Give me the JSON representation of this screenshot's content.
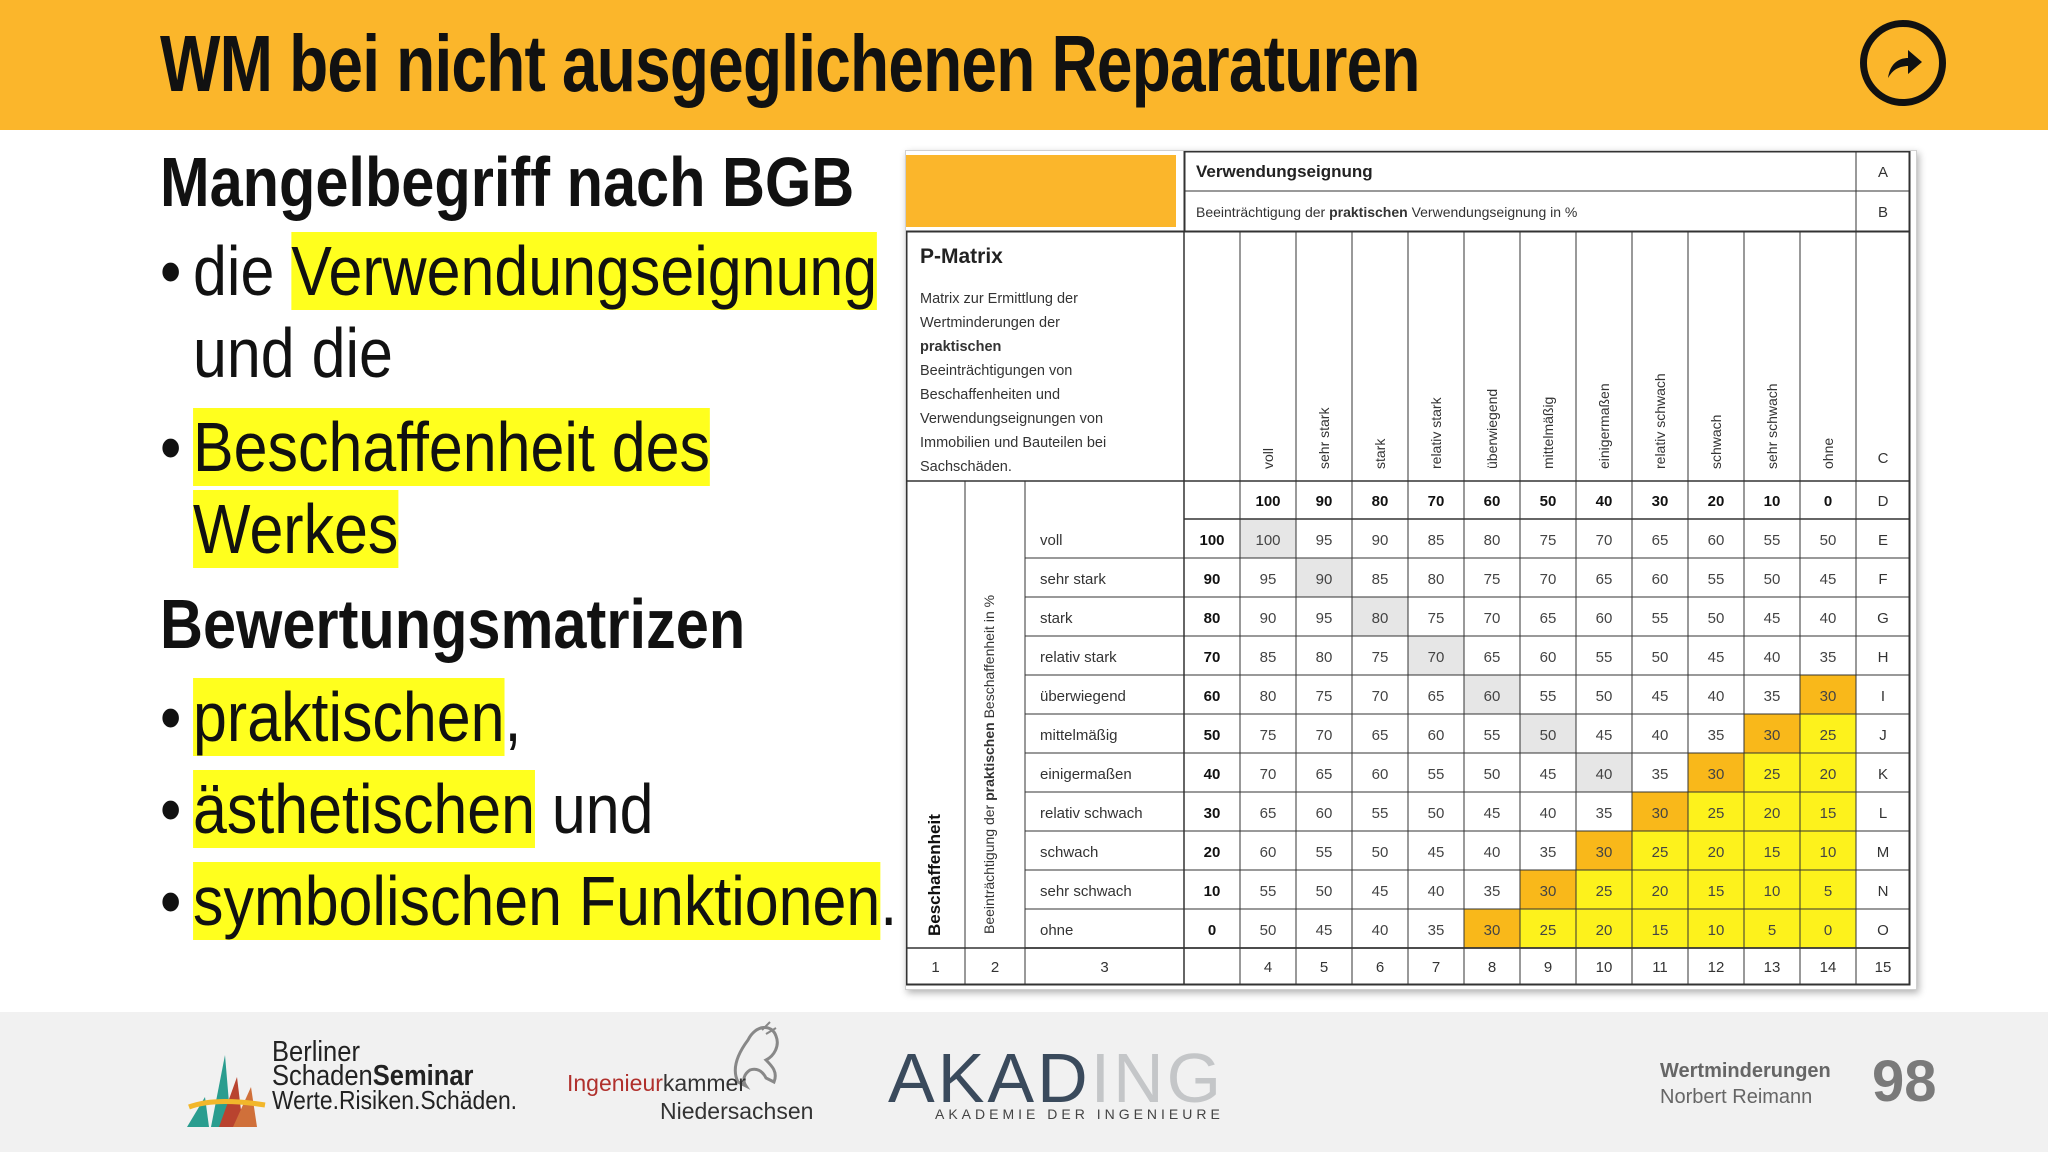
{
  "slide": {
    "title": "WM bei nicht ausgeglichenen Reparaturen",
    "nav_icon": "forward-arrow-circle-icon"
  },
  "left": {
    "heading1": "Mangelbegriff nach BGB",
    "bullet1_hl": "Verwendungseignung",
    "bullet1_pre": "die ",
    "bullet1_line2": "und die",
    "bullet2_line1": "Beschaffenheit des",
    "bullet2_line2": "Werkes",
    "heading2": "Bewertungsmatrizen",
    "bullet3_hl": "praktischen",
    "bullet3_post": ",",
    "bullet4_hl": "ästhetischen",
    "bullet4_post": " und",
    "bullet5_hl": "symbolischen Funktionen",
    "bullet5_post": ".",
    "bullet_char": "•"
  },
  "matrix": {
    "top_title": "Verwendungseignung",
    "top_subtitle_pre": "Beeinträchtigung der ",
    "top_subtitle_bold": "praktischen",
    "top_subtitle_post": " Verwendungseignung in %",
    "title": "P-Matrix",
    "desc_lines": [
      "Matrix zur Ermittlung der",
      "Wertminderungen der"
    ],
    "desc_bold": "praktischen",
    "desc_lines2": [
      "Beeinträchtigungen von",
      "Beschaffenheiten und",
      "Verwendungseignungen von",
      "Immobilien und Bauteilen bei",
      "Sachschäden."
    ],
    "col_labels": [
      "voll",
      "sehr stark",
      "stark",
      "relativ stark",
      "überwiegend",
      "mittelmäßig",
      "einigermaßen",
      "relativ schwach",
      "schwach",
      "sehr schwach",
      "ohne"
    ],
    "col_values": [
      "100",
      "90",
      "80",
      "70",
      "60",
      "50",
      "40",
      "30",
      "20",
      "10",
      "0"
    ],
    "row_labels": [
      "voll",
      "sehr stark",
      "stark",
      "relativ stark",
      "überwiegend",
      "mittelmäßig",
      "einigermaßen",
      "relativ schwach",
      "schwach",
      "sehr schwach",
      "ohne"
    ],
    "row_values": [
      "100",
      "90",
      "80",
      "70",
      "60",
      "50",
      "40",
      "30",
      "20",
      "10",
      "0"
    ],
    "right_letters": [
      "A",
      "B",
      "C",
      "D",
      "E",
      "F",
      "G",
      "H",
      "I",
      "J",
      "K",
      "L",
      "M",
      "N",
      "O"
    ],
    "bottom_numbers": [
      "1",
      "2",
      "3",
      "4",
      "5",
      "6",
      "7",
      "8",
      "9",
      "10",
      "11",
      "12",
      "13",
      "14",
      "15"
    ],
    "side_label_1": "Beschaffenheit",
    "side_label_2_pre": "Beeinträchtigung der ",
    "side_label_2_bold": "praktischen",
    "side_label_2_post": " Beschaffenheit in %",
    "cells": [
      [
        100,
        95,
        90,
        85,
        80,
        75,
        70,
        65,
        60,
        55,
        50
      ],
      [
        95,
        90,
        85,
        80,
        75,
        70,
        65,
        60,
        55,
        50,
        45
      ],
      [
        90,
        95,
        80,
        75,
        70,
        65,
        60,
        55,
        50,
        45,
        40
      ],
      [
        85,
        80,
        75,
        70,
        65,
        60,
        55,
        50,
        45,
        40,
        35
      ],
      [
        80,
        75,
        70,
        65,
        60,
        55,
        50,
        45,
        40,
        35,
        30
      ],
      [
        75,
        70,
        65,
        60,
        55,
        50,
        45,
        40,
        35,
        30,
        25
      ],
      [
        70,
        65,
        60,
        55,
        50,
        45,
        40,
        35,
        30,
        25,
        20
      ],
      [
        65,
        60,
        55,
        50,
        45,
        40,
        35,
        30,
        25,
        20,
        15
      ],
      [
        60,
        55,
        50,
        45,
        40,
        35,
        30,
        25,
        20,
        15,
        10
      ],
      [
        55,
        50,
        45,
        40,
        35,
        30,
        25,
        20,
        15,
        10,
        5
      ],
      [
        50,
        45,
        40,
        35,
        30,
        25,
        20,
        15,
        10,
        5,
        0
      ]
    ],
    "colors": {
      "orange": "#f9b81a",
      "yellow": "#fdf21c",
      "grey": "#e6e6e6",
      "header_orange": "#fbb62b"
    }
  },
  "footer": {
    "bss_line1": "Berliner",
    "bss_line2_a": "Schaden",
    "bss_line2_b": "Seminar",
    "bss_line3": "Werte.Risiken.Schäden.",
    "ik_line1_a": "Ingenieur",
    "ik_line1_b": "kammer",
    "ik_line2": "Niedersachsen",
    "akading_a": "AKAD",
    "akading_b": "ING",
    "akading_sub": "AKADEMIE DER INGENIEURE",
    "foot_title": "Wertminderungen",
    "foot_author": "Norbert Reimann",
    "page_number": "98"
  }
}
